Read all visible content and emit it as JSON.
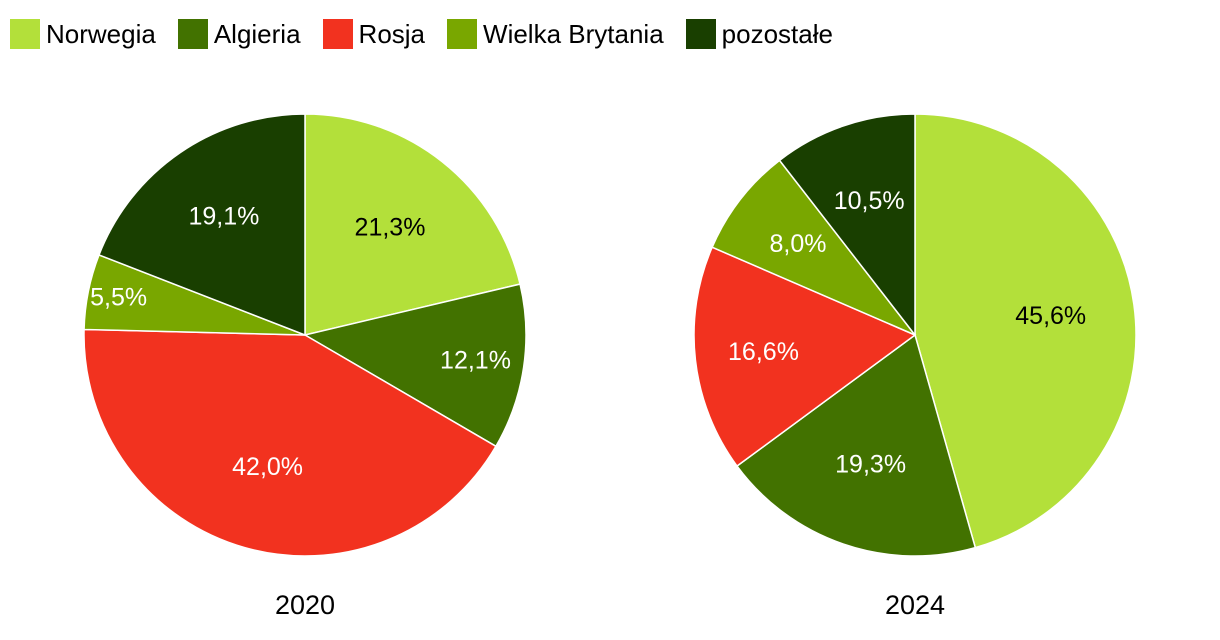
{
  "colors": {
    "Norwegia": "#b3e03a",
    "Algieria": "#427200",
    "Rosja": "#f2321f",
    "Wielka Brytania": "#79a700",
    "pozostałe": "#193f00"
  },
  "legend": [
    {
      "label": "Norwegia",
      "color": "#b3e03a"
    },
    {
      "label": "Algieria",
      "color": "#427200"
    },
    {
      "label": "Rosja",
      "color": "#f2321f"
    },
    {
      "label": "Wielka Brytania",
      "color": "#79a700"
    },
    {
      "label": "pozostałe",
      "color": "#193f00"
    }
  ],
  "chart_data": [
    {
      "type": "pie",
      "title": "2020",
      "categories": [
        "Norwegia",
        "Algieria",
        "Rosja",
        "Wielka Brytania",
        "pozostałe"
      ],
      "values": [
        21.3,
        12.1,
        42.0,
        5.5,
        19.1
      ],
      "labels": [
        "21,3%",
        "12,1%",
        "42,0%",
        "5,5%",
        "19,1%"
      ],
      "label_colors": [
        "#000000",
        "#ffffff",
        "#ffffff",
        "#ffffff",
        "#ffffff"
      ],
      "start_angle_deg": 0,
      "direction": "clockwise"
    },
    {
      "type": "pie",
      "title": "2024",
      "categories": [
        "Norwegia",
        "Algieria",
        "Rosja",
        "Wielka Brytania",
        "pozostałe"
      ],
      "values": [
        45.6,
        19.3,
        16.6,
        8.0,
        10.5
      ],
      "labels": [
        "45,6%",
        "19,3%",
        "16,6%",
        "8,0%",
        "10,5%"
      ],
      "label_colors": [
        "#000000",
        "#ffffff",
        "#ffffff",
        "#ffffff",
        "#ffffff"
      ],
      "start_angle_deg": 0,
      "direction": "clockwise"
    }
  ]
}
